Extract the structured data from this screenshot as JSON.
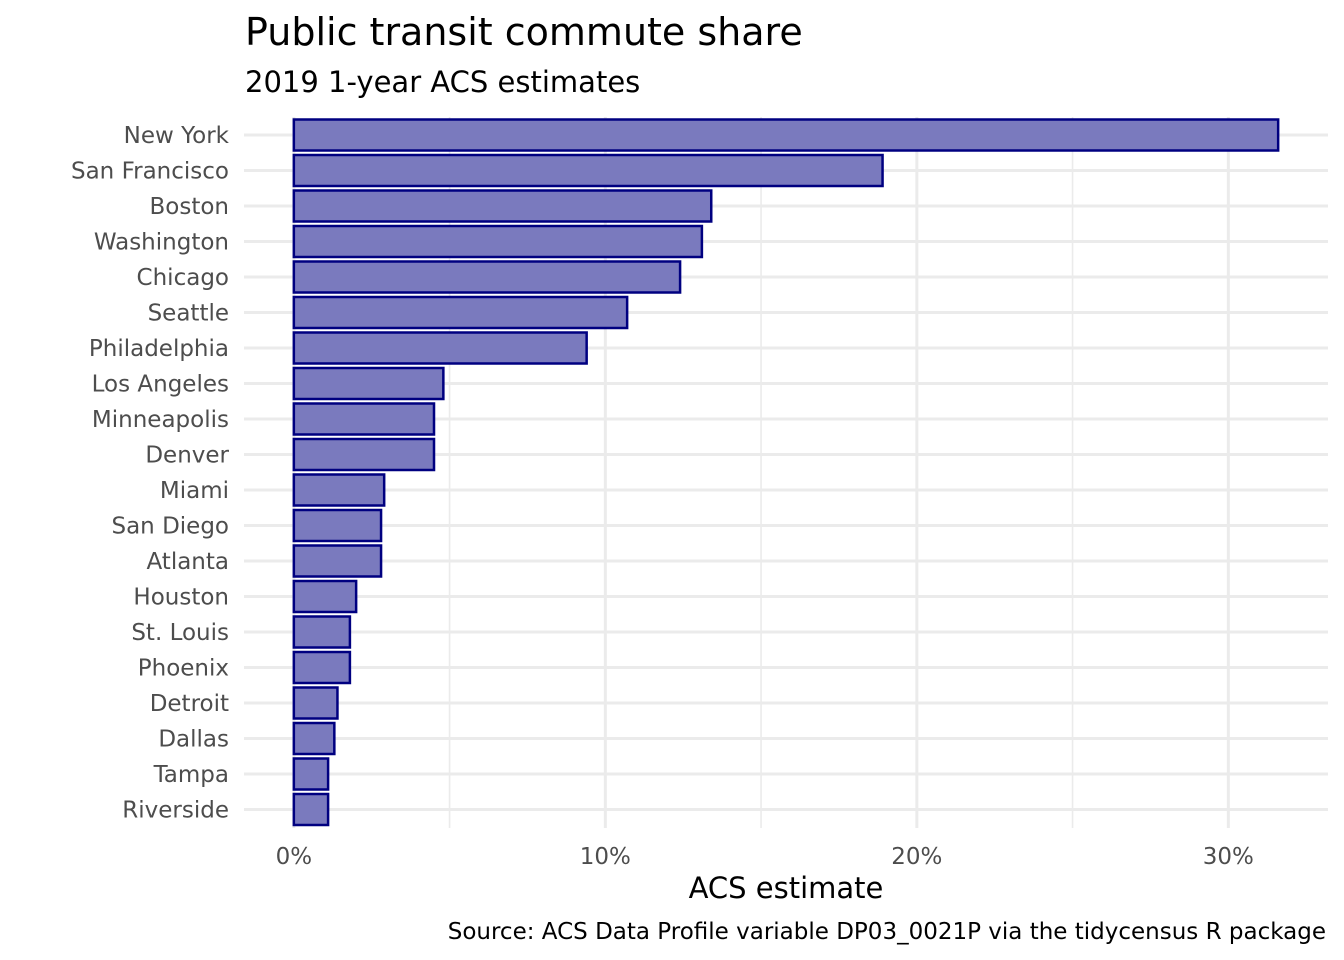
{
  "chart_data": {
    "type": "bar",
    "orientation": "horizontal",
    "title": "Public transit commute share",
    "subtitle": "2019 1-year ACS estimates",
    "xlabel": "ACS estimate",
    "ylabel": "",
    "caption": "Source: ACS Data Profile variable DP03_0021P via the tidycensus R package",
    "categories": [
      "New York",
      "San Francisco",
      "Boston",
      "Washington",
      "Chicago",
      "Seattle",
      "Philadelphia",
      "Los Angeles",
      "Minneapolis",
      "Denver",
      "Miami",
      "San Diego",
      "Atlanta",
      "Houston",
      "St. Louis",
      "Phoenix",
      "Detroit",
      "Dallas",
      "Tampa",
      "Riverside"
    ],
    "values": [
      31.6,
      18.9,
      13.4,
      13.1,
      12.4,
      10.7,
      9.4,
      4.8,
      4.5,
      4.5,
      2.9,
      2.8,
      2.8,
      2.0,
      1.8,
      1.8,
      1.4,
      1.3,
      1.1,
      1.1
    ],
    "xlim": [
      -1.6,
      33.2
    ],
    "x_ticks": [
      0,
      10,
      20,
      30
    ],
    "x_tick_labels": [
      "0%",
      "10%",
      "20%",
      "30%"
    ],
    "x_minor_ticks": [
      5,
      15,
      25
    ],
    "grid": true,
    "legend": "none",
    "colors": {
      "bar_fill": "#7a7abe",
      "bar_stroke": "#000080",
      "grid": "#ebebeb"
    }
  }
}
